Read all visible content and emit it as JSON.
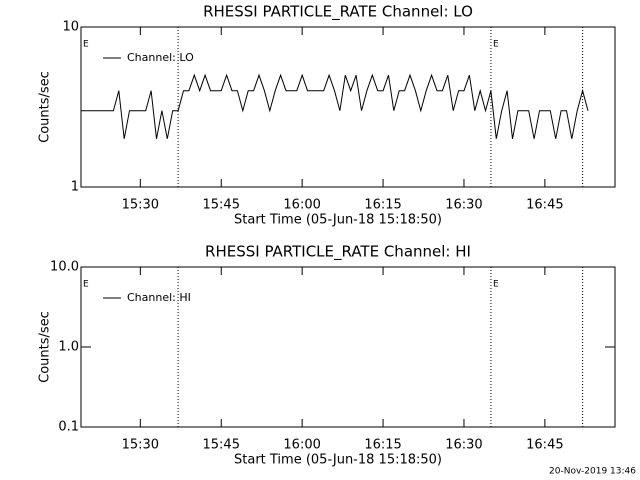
{
  "chart_data": [
    {
      "type": "line",
      "title": "RHESSI PARTICLE_RATE Channel: LO",
      "x_label": "Start Time (05-Jun-18 15:18:50)",
      "y_label": "Counts/sec",
      "log_y": true,
      "xlim": [
        "15:19",
        "16:58"
      ],
      "ylim": [
        1,
        10
      ],
      "yticks": [
        1,
        10
      ],
      "xticks": [
        "15:30",
        "15:45",
        "16:00",
        "16:15",
        "16:30",
        "16:45"
      ],
      "vlines": [
        "15:37",
        "16:35",
        "16:52"
      ],
      "annotations": [
        {
          "x": "15:19",
          "text": "E"
        },
        {
          "x": "16:35",
          "text": "E"
        }
      ],
      "legend": "upper left",
      "x": [
        "15:19",
        "15:20",
        "15:21",
        "15:22",
        "15:23",
        "15:24",
        "15:25",
        "15:26",
        "15:27",
        "15:28",
        "15:29",
        "15:30",
        "15:31",
        "15:32",
        "15:33",
        "15:34",
        "15:35",
        "15:36",
        "15:37",
        "15:38",
        "15:39",
        "15:40",
        "15:41",
        "15:42",
        "15:43",
        "15:44",
        "15:45",
        "15:46",
        "15:47",
        "15:48",
        "15:49",
        "15:50",
        "15:51",
        "15:52",
        "15:53",
        "15:54",
        "15:55",
        "15:56",
        "15:57",
        "15:58",
        "15:59",
        "16:00",
        "16:01",
        "16:02",
        "16:03",
        "16:04",
        "16:05",
        "16:06",
        "16:07",
        "16:08",
        "16:09",
        "16:10",
        "16:11",
        "16:12",
        "16:13",
        "16:14",
        "16:15",
        "16:16",
        "16:17",
        "16:18",
        "16:19",
        "16:20",
        "16:21",
        "16:22",
        "16:23",
        "16:24",
        "16:25",
        "16:26",
        "16:27",
        "16:28",
        "16:29",
        "16:30",
        "16:31",
        "16:32",
        "16:33",
        "16:34",
        "16:35",
        "16:36",
        "16:37",
        "16:38",
        "16:39",
        "16:40",
        "16:41",
        "16:42",
        "16:43",
        "16:44",
        "16:45",
        "16:46",
        "16:47",
        "16:48",
        "16:49",
        "16:50",
        "16:51",
        "16:52",
        "16:53"
      ],
      "series": [
        {
          "name": "Channel: LO",
          "color": "#000000",
          "values": [
            3,
            3,
            3,
            3,
            3,
            3,
            3,
            4,
            2,
            3,
            3,
            3,
            3,
            4,
            2,
            3,
            2,
            3,
            3,
            4,
            4,
            5,
            4,
            5,
            4,
            4,
            4,
            5,
            4,
            4,
            3,
            4,
            4,
            5,
            4,
            3,
            4,
            5,
            4,
            4,
            4,
            5,
            4,
            4,
            4,
            4,
            5,
            4,
            3,
            5,
            4,
            5,
            3,
            4,
            5,
            4,
            4,
            5,
            3,
            4,
            4,
            5,
            4,
            3,
            4,
            5,
            4,
            4,
            5,
            3,
            4,
            4,
            5,
            3,
            4,
            3,
            4,
            2,
            3,
            4,
            2,
            3,
            3,
            3,
            2,
            3,
            3,
            3,
            2,
            3,
            3,
            2,
            3,
            4,
            3
          ]
        }
      ]
    },
    {
      "type": "line",
      "title": "RHESSI PARTICLE_RATE Channel: HI",
      "x_label": "Start Time (05-Jun-18 15:18:50)",
      "y_label": "Counts/sec",
      "log_y": true,
      "xlim": [
        "15:19",
        "16:58"
      ],
      "ylim": [
        0.1,
        10
      ],
      "yticks": [
        0.1,
        {
          "value": 1,
          "label": "1.0"
        },
        {
          "value": 10,
          "label": "10.0"
        }
      ],
      "xticks": [
        "15:30",
        "15:45",
        "16:00",
        "16:15",
        "16:30",
        "16:45"
      ],
      "vlines": [
        "15:37",
        "16:35",
        "16:52"
      ],
      "annotations": [
        {
          "x": "15:19",
          "text": "E"
        },
        {
          "x": "16:35",
          "text": "E"
        }
      ],
      "legend": "upper left",
      "x": [],
      "series": [
        {
          "name": "Channel: HI",
          "color": "#000000",
          "values": []
        }
      ]
    }
  ],
  "footer": "20-Nov-2019 13:46"
}
